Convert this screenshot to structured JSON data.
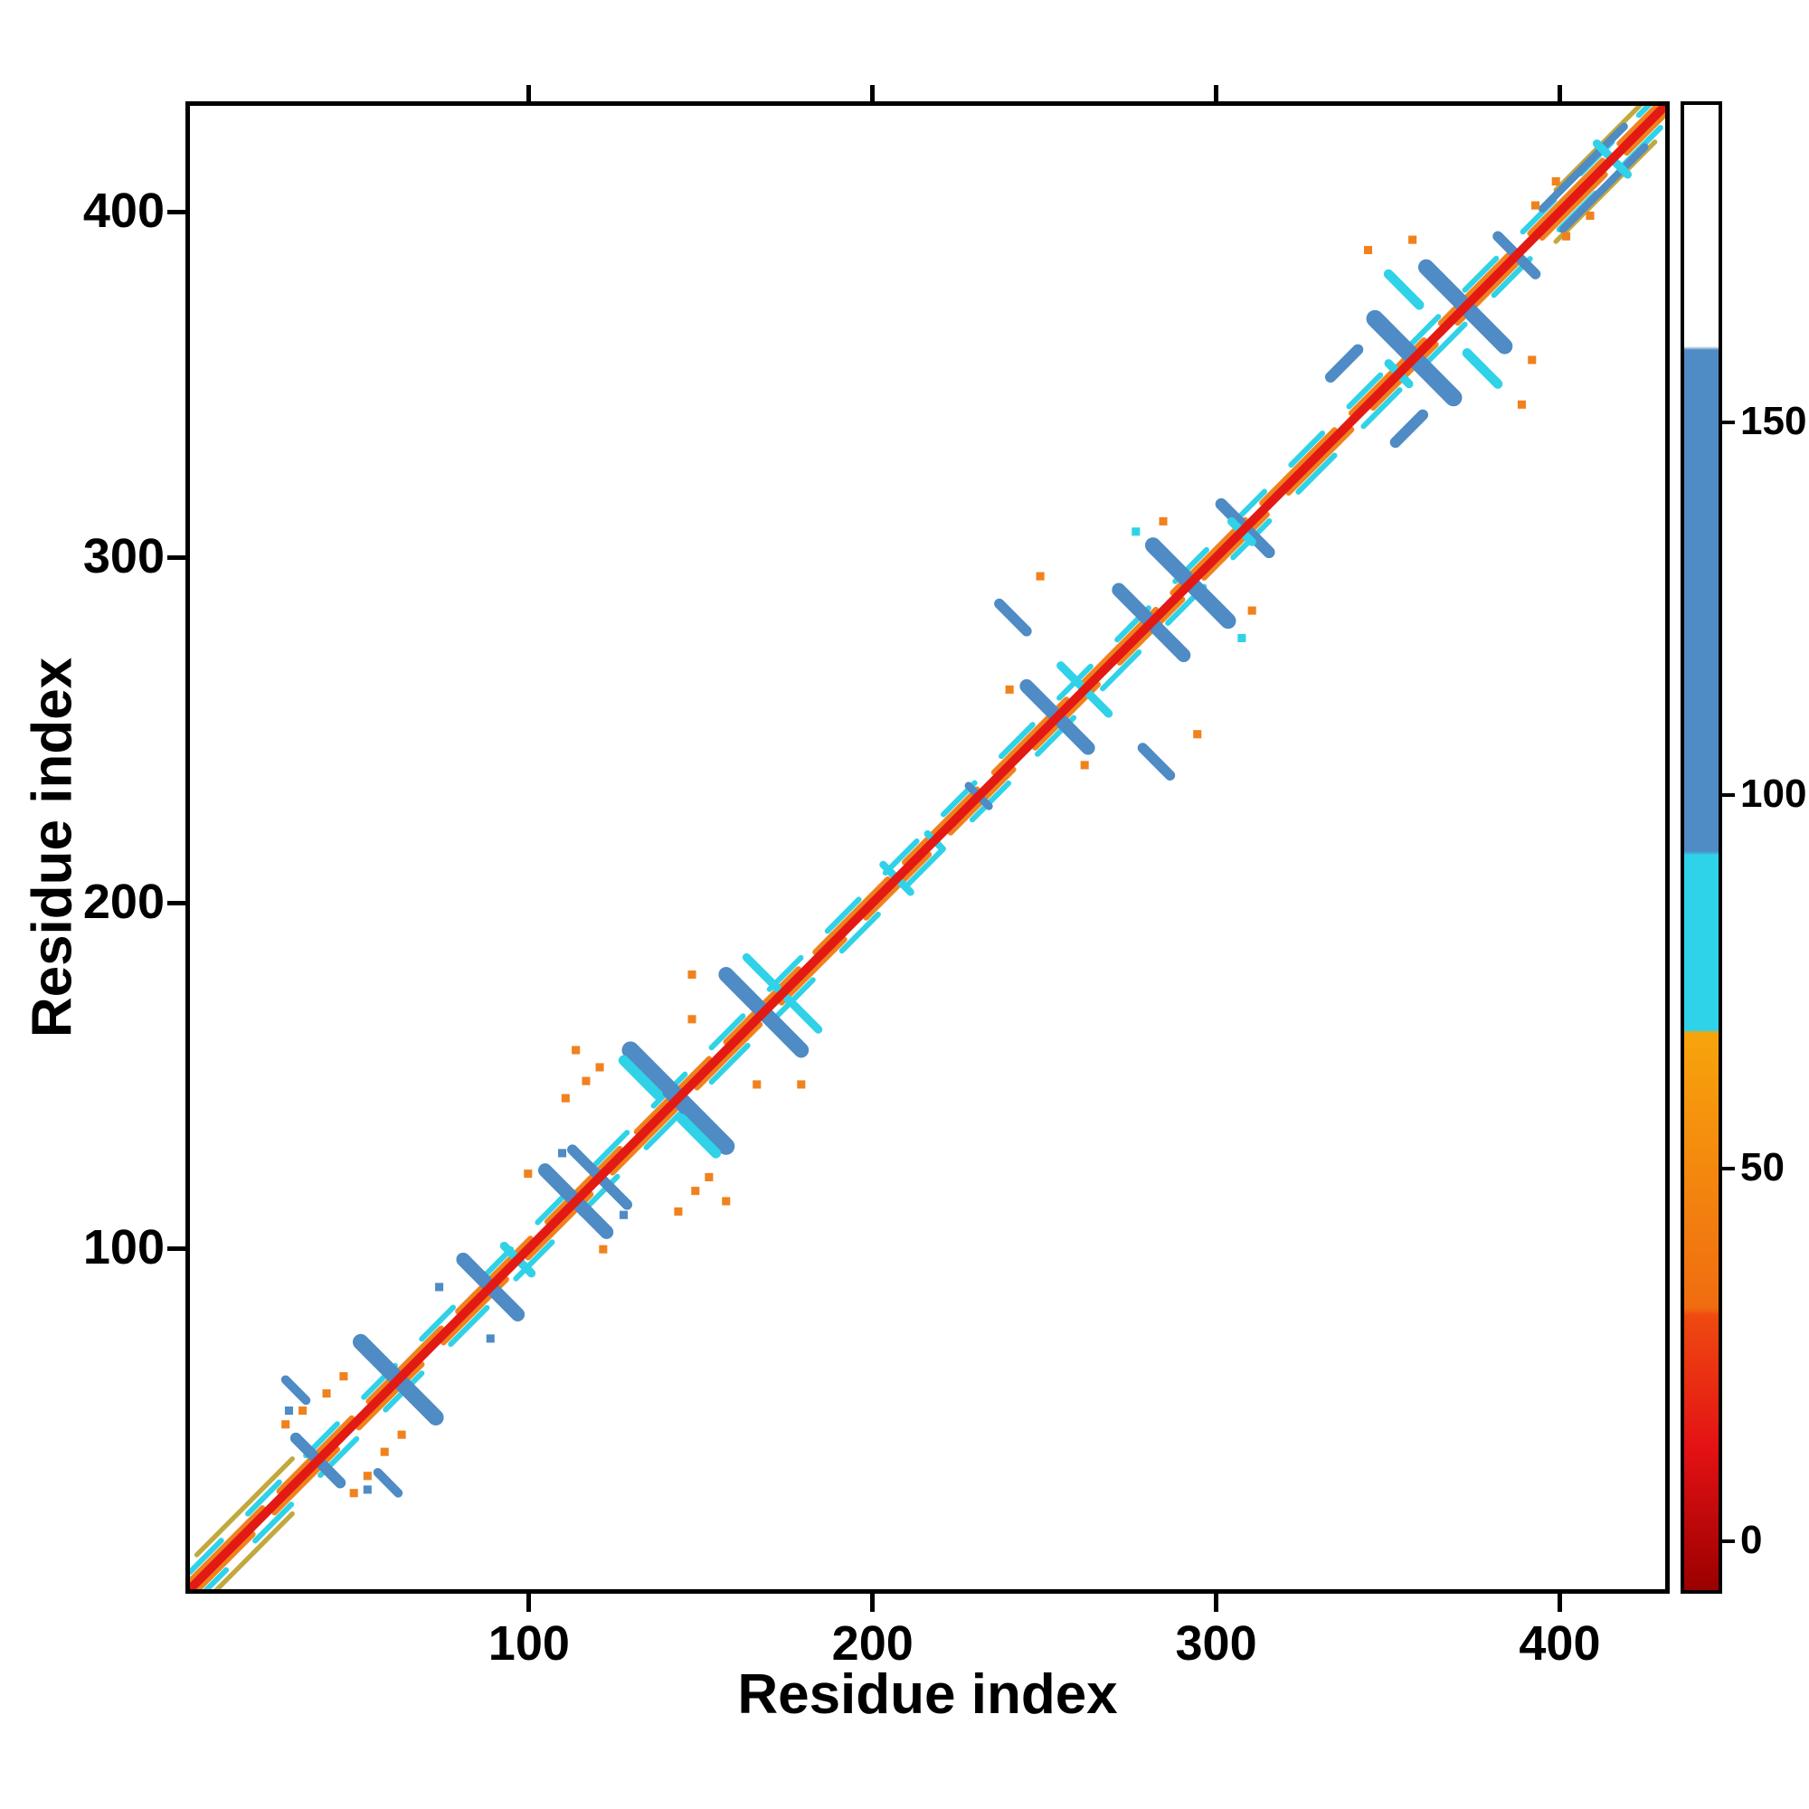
{
  "chart_data": {
    "type": "heatmap",
    "subtype": "protein-contact-map",
    "title": "",
    "xlabel": "Residue index",
    "ylabel": "Residue index",
    "xlim": [
      0,
      432
    ],
    "ylim": [
      0,
      432
    ],
    "xticks": [
      100,
      200,
      300,
      400
    ],
    "yticks": [
      100,
      200,
      300,
      400
    ],
    "grid": false,
    "legend_position": "none",
    "palette": {
      "red": "#e31a14",
      "orange": "#f0821e",
      "cyan": "#30d2e8",
      "blue": "#4f8bc4",
      "olive": "#c2a83d",
      "white": "#ffffff",
      "frame": "#000000"
    },
    "colorbar": {
      "range": [
        -7,
        193
      ],
      "ticks": [
        0,
        50,
        100,
        150
      ],
      "stops": [
        {
          "v": -7,
          "c": "#9b0000"
        },
        {
          "v": 12,
          "c": "#e31114"
        },
        {
          "v": 30,
          "c": "#ef4a10"
        },
        {
          "v": 31,
          "c": "#f06c10"
        },
        {
          "v": 68,
          "c": "#f8a40c"
        },
        {
          "v": 68.5,
          "c": "#2ed2e9"
        },
        {
          "v": 92,
          "c": "#2ed2e9"
        },
        {
          "v": 92.5,
          "c": "#4f8bc4"
        },
        {
          "v": 160,
          "c": "#4f8bc4"
        },
        {
          "v": 160.5,
          "c": "#ffffff"
        },
        {
          "v": 193,
          "c": "#ffffff"
        }
      ]
    },
    "diagonal": {
      "from": 0,
      "to": 432,
      "core": {
        "width": 2.6,
        "color": "red"
      },
      "layers": [
        {
          "offset": 5,
          "width": 1.6,
          "color": "cyan",
          "dash": "13 11"
        },
        {
          "offset": -5,
          "width": 1.6,
          "color": "cyan",
          "dash": "15 12"
        },
        {
          "offset": 2.4,
          "width": 1.7,
          "color": "orange",
          "dash": "30 7"
        },
        {
          "offset": -2.4,
          "width": 1.7,
          "color": "orange",
          "dash": "26 9"
        }
      ],
      "caps": [
        {
          "from": 2,
          "to": 30,
          "offset": 8,
          "width": 1.4,
          "color": "olive"
        },
        {
          "from": 2,
          "to": 30,
          "offset": -8,
          "width": 1.4,
          "color": "olive"
        },
        {
          "from": 400,
          "to": 429,
          "offset": 7.5,
          "width": 1.4,
          "color": "olive"
        },
        {
          "from": 400,
          "to": 429,
          "offset": -7.5,
          "width": 1.4,
          "color": "olive"
        }
      ]
    },
    "symmetric": true,
    "segments": [
      {
        "x1": 31,
        "y1": 44,
        "x2": 44,
        "y2": 31,
        "w": 3.2,
        "color": "blue"
      },
      {
        "x1": 50,
        "y1": 72,
        "x2": 72,
        "y2": 50,
        "w": 4.6,
        "color": "blue"
      },
      {
        "x1": 55,
        "y1": 34,
        "x2": 61,
        "y2": 28,
        "w": 2.6,
        "color": "blue"
      },
      {
        "x1": 80,
        "y1": 96,
        "x2": 96,
        "y2": 80,
        "w": 4.0,
        "color": "blue"
      },
      {
        "x1": 92,
        "y1": 100,
        "x2": 100,
        "y2": 92,
        "w": 2.4,
        "color": "cyan"
      },
      {
        "x1": 104,
        "y1": 122,
        "x2": 122,
        "y2": 104,
        "w": 4.0,
        "color": "blue"
      },
      {
        "x1": 112,
        "y1": 128,
        "x2": 128,
        "y2": 112,
        "w": 3.0,
        "color": "blue"
      },
      {
        "x1": 129,
        "y1": 157,
        "x2": 157,
        "y2": 129,
        "w": 5.0,
        "color": "blue"
      },
      {
        "x1": 144,
        "y1": 137,
        "x2": 154,
        "y2": 127,
        "w": 3.0,
        "color": "cyan"
      },
      {
        "x1": 157,
        "y1": 179,
        "x2": 179,
        "y2": 157,
        "w": 4.4,
        "color": "blue"
      },
      {
        "x1": 163,
        "y1": 184,
        "x2": 172,
        "y2": 175,
        "w": 2.4,
        "color": "cyan"
      },
      {
        "x1": 205,
        "y1": 209,
        "x2": 211,
        "y2": 203,
        "w": 2.2,
        "color": "cyan"
      },
      {
        "x1": 216,
        "y1": 220,
        "x2": 220,
        "y2": 216,
        "w": 2.0,
        "color": "cyan"
      },
      {
        "x1": 228,
        "y1": 234,
        "x2": 234,
        "y2": 228,
        "w": 2.2,
        "color": "blue"
      },
      {
        "x1": 245,
        "y1": 263,
        "x2": 263,
        "y2": 245,
        "w": 4.0,
        "color": "blue"
      },
      {
        "x1": 255,
        "y1": 269,
        "x2": 269,
        "y2": 255,
        "w": 2.4,
        "color": "cyan"
      },
      {
        "x1": 237,
        "y1": 287,
        "x2": 245,
        "y2": 279,
        "w": 3.0,
        "color": "blue"
      },
      {
        "x1": 272,
        "y1": 291,
        "x2": 291,
        "y2": 272,
        "w": 4.0,
        "color": "blue"
      },
      {
        "x1": 282,
        "y1": 304,
        "x2": 304,
        "y2": 282,
        "w": 4.6,
        "color": "blue"
      },
      {
        "x1": 302,
        "y1": 316,
        "x2": 316,
        "y2": 302,
        "w": 3.4,
        "color": "blue"
      },
      {
        "x1": 305,
        "y1": 311,
        "x2": 311,
        "y2": 305,
        "w": 2.4,
        "color": "cyan"
      },
      {
        "x1": 334,
        "y1": 353,
        "x2": 342,
        "y2": 361,
        "w": 3.2,
        "color": "blue"
      },
      {
        "x1": 351,
        "y1": 357,
        "x2": 357,
        "y2": 351,
        "w": 2.4,
        "color": "cyan"
      },
      {
        "x1": 347,
        "y1": 370,
        "x2": 370,
        "y2": 347,
        "w": 5.0,
        "color": "blue"
      },
      {
        "x1": 362,
        "y1": 385,
        "x2": 385,
        "y2": 362,
        "w": 4.6,
        "color": "blue"
      },
      {
        "x1": 374,
        "y1": 360,
        "x2": 383,
        "y2": 351,
        "w": 2.8,
        "color": "cyan"
      },
      {
        "x1": 383,
        "y1": 394,
        "x2": 394,
        "y2": 383,
        "w": 3.0,
        "color": "blue"
      },
      {
        "x1": 396,
        "y1": 402,
        "x2": 420,
        "y2": 426,
        "w": 2.2,
        "color": "blue"
      },
      {
        "x1": 412,
        "y1": 421,
        "x2": 421,
        "y2": 412,
        "w": 2.4,
        "color": "cyan"
      }
    ],
    "dots": [
      {
        "x": 28,
        "y": 48,
        "color": "orange"
      },
      {
        "x": 33,
        "y": 52,
        "color": "orange"
      },
      {
        "x": 29,
        "y": 52,
        "color": "blue"
      },
      {
        "x": 40,
        "y": 57,
        "color": "orange"
      },
      {
        "x": 45,
        "y": 62,
        "color": "orange"
      },
      {
        "x": 88,
        "y": 73,
        "color": "blue"
      },
      {
        "x": 99,
        "y": 121,
        "color": "orange"
      },
      {
        "x": 127,
        "y": 109,
        "color": "blue"
      },
      {
        "x": 110,
        "y": 143,
        "color": "orange"
      },
      {
        "x": 116,
        "y": 148,
        "color": "orange"
      },
      {
        "x": 120,
        "y": 152,
        "color": "orange"
      },
      {
        "x": 113,
        "y": 157,
        "color": "orange"
      },
      {
        "x": 166,
        "y": 147,
        "color": "orange"
      },
      {
        "x": 147,
        "y": 179,
        "color": "orange"
      },
      {
        "x": 240,
        "y": 262,
        "color": "orange"
      },
      {
        "x": 249,
        "y": 295,
        "color": "orange"
      },
      {
        "x": 277,
        "y": 308,
        "color": "cyan"
      },
      {
        "x": 285,
        "y": 311,
        "color": "orange"
      },
      {
        "x": 345,
        "y": 390,
        "color": "orange"
      },
      {
        "x": 358,
        "y": 393,
        "color": "orange"
      },
      {
        "x": 394,
        "y": 403,
        "color": "orange"
      },
      {
        "x": 400,
        "y": 410,
        "color": "orange"
      }
    ]
  }
}
